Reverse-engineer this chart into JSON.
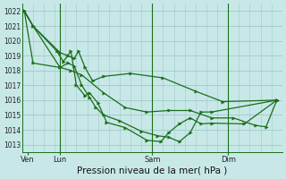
{
  "background_color": "#c8e8e8",
  "grid_color": "#a0c8c8",
  "line_color": "#1a6e1a",
  "marker_color": "#1a6e1a",
  "xlabel": "Pression niveau de la mer( hPa )",
  "yticks": [
    1013,
    1014,
    1015,
    1016,
    1017,
    1018,
    1019,
    1020,
    1021,
    1022
  ],
  "ylim": [
    1012.5,
    1022.5
  ],
  "xtick_labels": [
    "Ven",
    "Lun",
    "Sam",
    "Dim"
  ],
  "xtick_positions": [
    0.5,
    3.5,
    12,
    19
  ],
  "xlim": [
    0,
    24
  ],
  "vline_positions": [
    3.5,
    12,
    19
  ],
  "series": [
    {
      "x": [
        0.2,
        1.0,
        3.5,
        4.2,
        4.8,
        5.2,
        5.8,
        6.5,
        7.5,
        10,
        13,
        16,
        18.5,
        23.5
      ],
      "y": [
        1022.0,
        1021.0,
        1019.2,
        1019.0,
        1018.8,
        1019.3,
        1018.2,
        1017.3,
        1017.6,
        1017.8,
        1017.5,
        1016.6,
        1015.9,
        1016.0
      ]
    },
    {
      "x": [
        0.2,
        1.0,
        3.5,
        4.2,
        4.8,
        5.5,
        6.2,
        6.8,
        7.5,
        9.0,
        11.0,
        12.5,
        13.5,
        14.5,
        15.5,
        16.5,
        17.5,
        23.5
      ],
      "y": [
        1022.0,
        1021.0,
        1018.2,
        1018.5,
        1018.3,
        1017.0,
        1016.2,
        1015.5,
        1015.0,
        1014.6,
        1013.9,
        1013.6,
        1013.5,
        1013.2,
        1013.8,
        1015.2,
        1015.2,
        1016.0
      ]
    },
    {
      "x": [
        0.2,
        1.0,
        3.2,
        3.8,
        4.5,
        5.0,
        5.8,
        6.2,
        7.0,
        7.8,
        9.5,
        11.5,
        12.8,
        13.5,
        14.5,
        15.5,
        16.5,
        17.5,
        20.5,
        23.5
      ],
      "y": [
        1022.0,
        1021.0,
        1019.3,
        1018.6,
        1019.3,
        1017.0,
        1016.3,
        1016.5,
        1015.8,
        1014.5,
        1014.15,
        1013.3,
        1013.2,
        1013.8,
        1014.4,
        1014.8,
        1014.4,
        1014.45,
        1014.4,
        1016.0
      ]
    },
    {
      "x": [
        0.2,
        1.0,
        3.5,
        4.5,
        5.5,
        7.5,
        9.5,
        11.5,
        13.5,
        15.5,
        17.5,
        19.5,
        21.5,
        22.5,
        23.5
      ],
      "y": [
        1022.0,
        1018.5,
        1018.2,
        1018.0,
        1017.7,
        1016.5,
        1015.5,
        1015.2,
        1015.3,
        1015.3,
        1014.8,
        1014.8,
        1014.3,
        1014.2,
        1016.0
      ]
    }
  ],
  "marker_size": 2.5,
  "line_width": 0.9,
  "fontsize_tick": 5.5,
  "fontsize_xlabel": 7.5
}
